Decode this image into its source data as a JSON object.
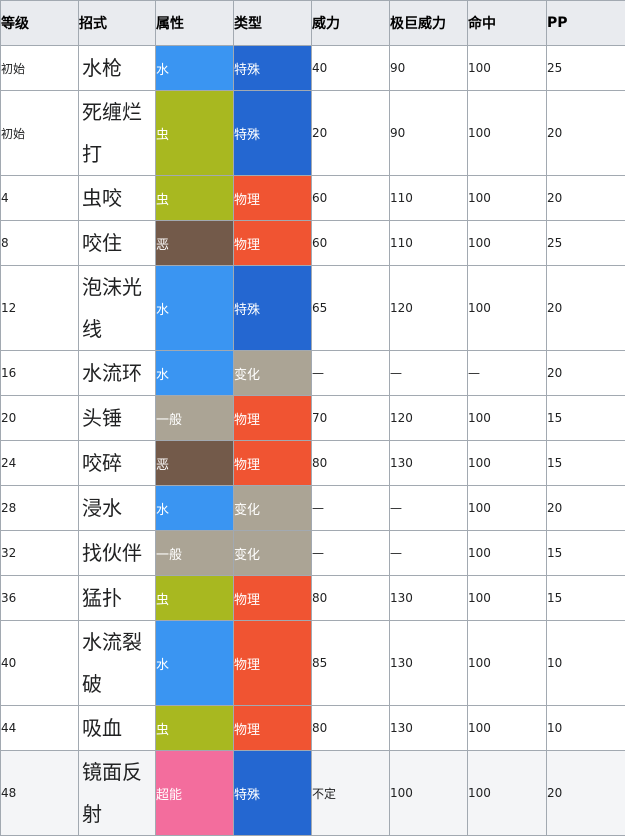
{
  "headers": [
    "等级",
    "招式",
    "属性",
    "类型",
    "威力",
    "极巨威力",
    "命中",
    "PP"
  ],
  "colors": {
    "水": "#3a95f2",
    "虫": "#a8b820",
    "恶": "#735a4a",
    "一般": "#aba495",
    "超能": "#f36d9d",
    "特殊": "#2467d1",
    "物理": "#f05432",
    "变化": "#aba495"
  },
  "rows": [
    {
      "level": "初始",
      "move": "水枪",
      "type": "水",
      "category": "特殊",
      "power": "40",
      "max_power": "90",
      "accuracy": "100",
      "pp": "25",
      "tall": false
    },
    {
      "level": "初始",
      "move": "死缠烂打",
      "type": "虫",
      "category": "特殊",
      "power": "20",
      "max_power": "90",
      "accuracy": "100",
      "pp": "20",
      "tall": true
    },
    {
      "level": "4",
      "move": "虫咬",
      "type": "虫",
      "category": "物理",
      "power": "60",
      "max_power": "110",
      "accuracy": "100",
      "pp": "20",
      "tall": false
    },
    {
      "level": "8",
      "move": "咬住",
      "type": "恶",
      "category": "物理",
      "power": "60",
      "max_power": "110",
      "accuracy": "100",
      "pp": "25",
      "tall": false
    },
    {
      "level": "12",
      "move": "泡沫光线",
      "type": "水",
      "category": "特殊",
      "power": "65",
      "max_power": "120",
      "accuracy": "100",
      "pp": "20",
      "tall": true
    },
    {
      "level": "16",
      "move": "水流环",
      "type": "水",
      "category": "变化",
      "power": "—",
      "max_power": "—",
      "accuracy": "—",
      "pp": "20",
      "tall": false
    },
    {
      "level": "20",
      "move": "头锤",
      "type": "一般",
      "category": "物理",
      "power": "70",
      "max_power": "120",
      "accuracy": "100",
      "pp": "15",
      "tall": false
    },
    {
      "level": "24",
      "move": "咬碎",
      "type": "恶",
      "category": "物理",
      "power": "80",
      "max_power": "130",
      "accuracy": "100",
      "pp": "15",
      "tall": false
    },
    {
      "level": "28",
      "move": "浸水",
      "type": "水",
      "category": "变化",
      "power": "—",
      "max_power": "—",
      "accuracy": "100",
      "pp": "20",
      "tall": false
    },
    {
      "level": "32",
      "move": "找伙伴",
      "type": "一般",
      "category": "变化",
      "power": "—",
      "max_power": "—",
      "accuracy": "100",
      "pp": "15",
      "tall": false
    },
    {
      "level": "36",
      "move": "猛扑",
      "type": "虫",
      "category": "物理",
      "power": "80",
      "max_power": "130",
      "accuracy": "100",
      "pp": "15",
      "tall": false
    },
    {
      "level": "40",
      "move": "水流裂破",
      "type": "水",
      "category": "物理",
      "power": "85",
      "max_power": "130",
      "accuracy": "100",
      "pp": "10",
      "tall": true
    },
    {
      "level": "44",
      "move": "吸血",
      "type": "虫",
      "category": "物理",
      "power": "80",
      "max_power": "130",
      "accuracy": "100",
      "pp": "10",
      "tall": false
    },
    {
      "level": "48",
      "move": "镜面反射",
      "type": "超能",
      "category": "特殊",
      "power": "不定",
      "max_power": "100",
      "accuracy": "100",
      "pp": "20",
      "tall": true,
      "shaded": true
    }
  ]
}
